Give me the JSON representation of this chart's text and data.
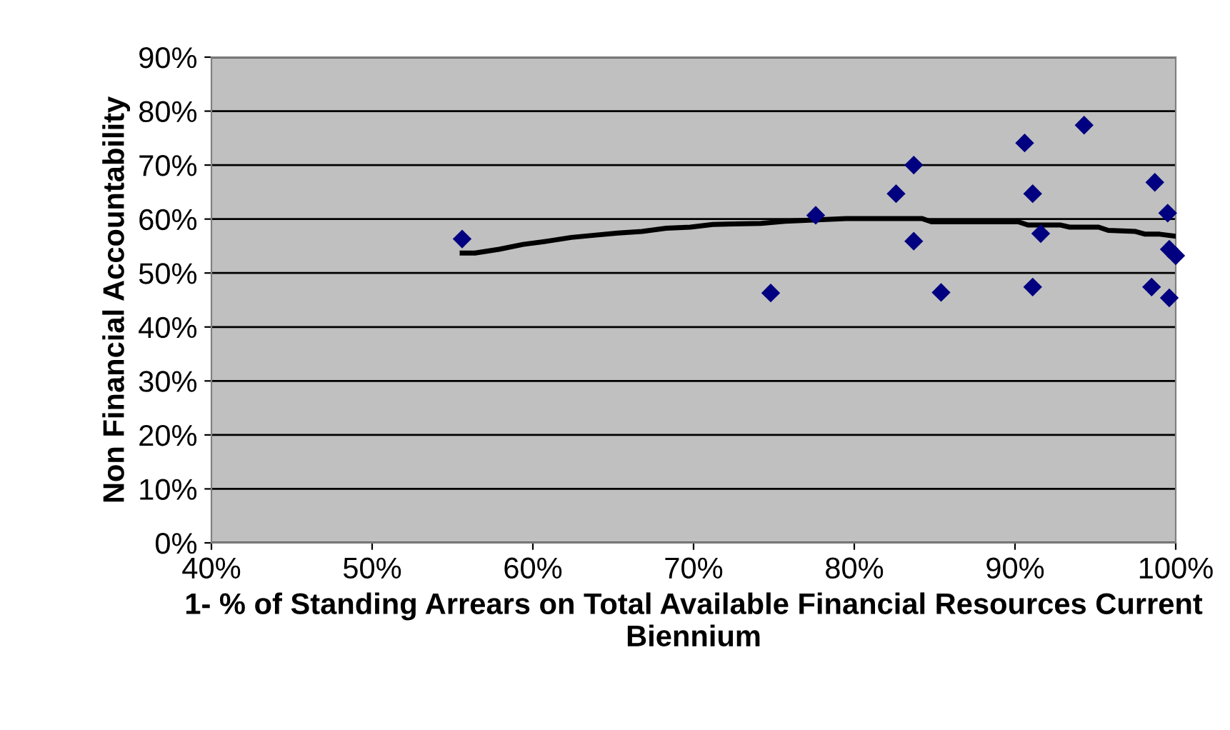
{
  "chart_data": {
    "type": "scatter",
    "xlabel": "1- % of Standing Arrears on Total Available Financial Resources Current Biennium",
    "ylabel": "Non Financial Accountability",
    "xlim": [
      40,
      100
    ],
    "ylim": [
      0,
      90
    ],
    "xticks": [
      {
        "value": 40,
        "label": "40%"
      },
      {
        "value": 50,
        "label": "50%"
      },
      {
        "value": 60,
        "label": "60%"
      },
      {
        "value": 70,
        "label": "70%"
      },
      {
        "value": 80,
        "label": "80%"
      },
      {
        "value": 90,
        "label": "90%"
      },
      {
        "value": 100,
        "label": "100%"
      }
    ],
    "yticks": [
      {
        "value": 0,
        "label": "0%"
      },
      {
        "value": 10,
        "label": "10%"
      },
      {
        "value": 20,
        "label": "20%"
      },
      {
        "value": 30,
        "label": "30%"
      },
      {
        "value": 40,
        "label": "40%"
      },
      {
        "value": 50,
        "label": "50%"
      },
      {
        "value": 60,
        "label": "60%"
      },
      {
        "value": 70,
        "label": "70%"
      },
      {
        "value": 80,
        "label": "80%"
      },
      {
        "value": 90,
        "label": "90%"
      }
    ],
    "grid": "y",
    "series": [
      {
        "color": "#000080",
        "marker": "diamond",
        "x": [
          55.6,
          74.8,
          77.6,
          82.6,
          83.7,
          83.7,
          85.4,
          90.6,
          91.1,
          91.6,
          91.1,
          94.3,
          98.7,
          99.5,
          98.5,
          99.6,
          99.6,
          100.0
        ],
        "values": [
          56.3,
          46.3,
          60.7,
          64.7,
          70.0,
          55.9,
          46.4,
          74.1,
          64.7,
          57.3,
          47.4,
          77.4,
          66.8,
          61.1,
          47.4,
          45.4,
          54.4,
          53.2
        ]
      },
      {
        "type": "line",
        "color": "#000000",
        "marker": "none",
        "line_style": "solid",
        "x": [
          55.6,
          56.4,
          57.9,
          59.4,
          60.9,
          62.4,
          63.8,
          65.3,
          66.8,
          68.3,
          69.8,
          71.2,
          74.2,
          75.7,
          79.5,
          84.2,
          84.8,
          90.2,
          90.8,
          92.8,
          93.4,
          95.2,
          95.8,
          97.5,
          98.1,
          99.0,
          100.0
        ],
        "values": [
          53.7,
          53.7,
          54.4,
          55.3,
          55.9,
          56.6,
          57.0,
          57.4,
          57.7,
          58.3,
          58.5,
          59.0,
          59.2,
          59.6,
          60.1,
          60.1,
          59.5,
          59.5,
          58.9,
          58.9,
          58.5,
          58.5,
          57.9,
          57.7,
          57.2,
          57.2,
          56.8
        ]
      }
    ]
  }
}
